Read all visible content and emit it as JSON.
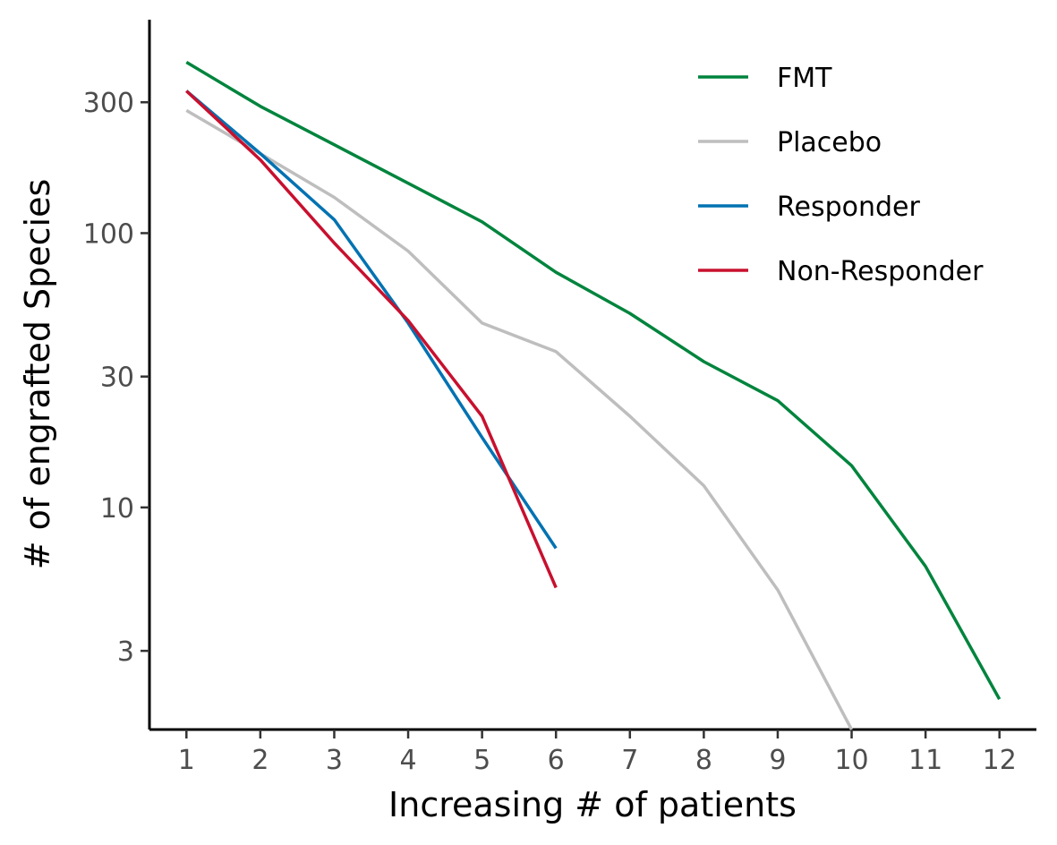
{
  "chart_data": {
    "type": "line",
    "xlabel": "Increasing # of patients",
    "ylabel": "# of engrafted Species",
    "y_scale": "log",
    "xlim": [
      0.5,
      12.5
    ],
    "ylim": [
      1.55,
      600
    ],
    "x_ticks": [
      1,
      2,
      3,
      4,
      5,
      6,
      7,
      8,
      9,
      10,
      11,
      12
    ],
    "y_ticks": [
      3,
      10,
      30,
      100,
      300
    ],
    "x_tick_labels": [
      "1",
      "2",
      "3",
      "4",
      "5",
      "6",
      "7",
      "8",
      "9",
      "10",
      "11",
      "12"
    ],
    "y_tick_labels": [
      "3",
      "10",
      "30",
      "100",
      "300"
    ],
    "grid": false,
    "legend_position": "top-right",
    "series": [
      {
        "name": "FMT",
        "color": "#00843D",
        "x": [
          1,
          2,
          3,
          4,
          5,
          6,
          7,
          8,
          9,
          10,
          11,
          12
        ],
        "y": [
          420,
          290,
          210,
          152,
          110,
          72,
          51,
          34,
          24.5,
          14.2,
          6.1,
          2.0
        ]
      },
      {
        "name": "Placebo",
        "color": "#BEBEBE",
        "x": [
          1,
          2,
          3,
          4,
          5,
          6,
          7,
          8,
          9,
          10
        ],
        "y": [
          280,
          195,
          135,
          86,
          47,
          37,
          21.5,
          12,
          5,
          1.55
        ]
      },
      {
        "name": "Responder",
        "color": "#0072B2",
        "x": [
          1,
          2,
          3,
          4,
          5,
          6
        ],
        "y": [
          330,
          195,
          112,
          47,
          18,
          7.1
        ]
      },
      {
        "name": "Non-Responder",
        "color": "#C8102E",
        "x": [
          1,
          2,
          3,
          4,
          5,
          6
        ],
        "y": [
          330,
          185,
          92,
          48,
          21.5,
          5.1
        ]
      }
    ]
  }
}
